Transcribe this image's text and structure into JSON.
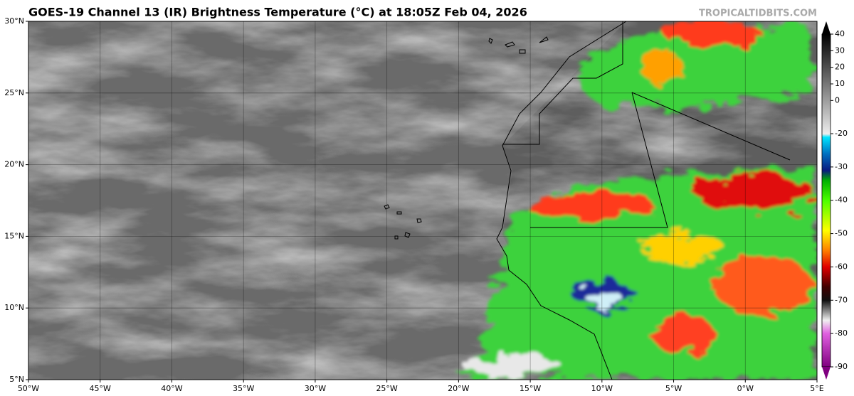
{
  "header": {
    "title": "GOES-19 Channel 13 (IR) Brightness Temperature (°C) at 18:05Z Feb 04, 2026",
    "watermark": "TROPICALTIDBITS.COM"
  },
  "map": {
    "xlim": [
      -50,
      5
    ],
    "ylim": [
      5,
      30
    ],
    "xticks": [
      {
        "value": -50,
        "label": "50°W"
      },
      {
        "value": -45,
        "label": "45°W"
      },
      {
        "value": -40,
        "label": "40°W"
      },
      {
        "value": -35,
        "label": "35°W"
      },
      {
        "value": -30,
        "label": "30°W"
      },
      {
        "value": -25,
        "label": "25°W"
      },
      {
        "value": -20,
        "label": "20°W"
      },
      {
        "value": -15,
        "label": "15°W"
      },
      {
        "value": -10,
        "label": "10°W"
      },
      {
        "value": -5,
        "label": "5°W"
      },
      {
        "value": 0,
        "label": "0°W"
      },
      {
        "value": 5,
        "label": "5°E"
      }
    ],
    "yticks": [
      {
        "value": 5,
        "label": "5°N"
      },
      {
        "value": 10,
        "label": "10°N"
      },
      {
        "value": 15,
        "label": "15°N"
      },
      {
        "value": 20,
        "label": "20°N"
      },
      {
        "value": 25,
        "label": "25°N"
      },
      {
        "value": 30,
        "label": "30°N"
      }
    ]
  },
  "colorbar": {
    "ticks": [
      40,
      30,
      20,
      10,
      0,
      -20,
      -30,
      -40,
      -50,
      -60,
      -70,
      -80,
      -90
    ]
  }
}
